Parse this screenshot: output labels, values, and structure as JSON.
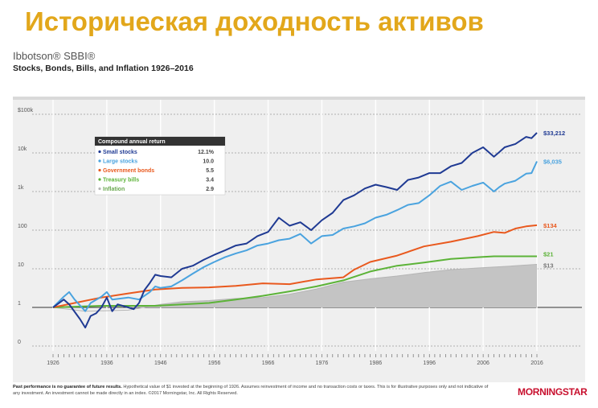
{
  "slide_title": "Историческая доходность активов",
  "brand": "Ibbotson® SBBI®",
  "footnote": {
    "bold": "Past performance is no guarantee of future results.",
    "text": " Hypothetical value of $1 invested at the beginning of 1926. Assumes reinvestment of income and no transaction costs or taxes. This is for illustrative purposes only and not indicative of any investment. An investment cannot be made directly in an index. ©2017 Morningstar, Inc. All Rights Reserved."
  },
  "logo": {
    "text": "MORNINGSTAR",
    "icon": "star-icon"
  },
  "chart_data": {
    "type": "line",
    "title": "Stocks, Bonds, Bills, and Inflation 1926–2016",
    "y_scale": "log",
    "y_ticks": [
      {
        "value": 0.1,
        "label": "0"
      },
      {
        "value": 1,
        "label": "1"
      },
      {
        "value": 10,
        "label": "10"
      },
      {
        "value": 100,
        "label": "100"
      },
      {
        "value": 1000,
        "label": "1k"
      },
      {
        "value": 10000,
        "label": "10k"
      },
      {
        "value": 100000,
        "label": "$100k"
      }
    ],
    "x_ticks": [
      1926,
      1936,
      1946,
      1956,
      1966,
      1976,
      1986,
      1996,
      2006,
      2016
    ],
    "xlim": [
      1926,
      2016
    ],
    "ylim": [
      0.1,
      100000
    ],
    "legend": {
      "title": "Compound annual return",
      "placement": "top-left"
    },
    "series": [
      {
        "name": "Small stocks",
        "return": "12.1%",
        "end_label": "$33,212",
        "color": "#1f3a93",
        "points": [
          [
            1926,
            1
          ],
          [
            1928,
            1.6
          ],
          [
            1929,
            1.2
          ],
          [
            1931,
            0.5
          ],
          [
            1932,
            0.3
          ],
          [
            1933,
            0.6
          ],
          [
            1934,
            0.7
          ],
          [
            1935,
            1.0
          ],
          [
            1936,
            1.8
          ],
          [
            1937,
            0.8
          ],
          [
            1938,
            1.2
          ],
          [
            1940,
            1.0
          ],
          [
            1941,
            0.9
          ],
          [
            1942,
            1.3
          ],
          [
            1943,
            2.8
          ],
          [
            1944,
            4.3
          ],
          [
            1945,
            7.0
          ],
          [
            1946,
            6.5
          ],
          [
            1948,
            6.0
          ],
          [
            1950,
            10
          ],
          [
            1952,
            12
          ],
          [
            1954,
            17
          ],
          [
            1956,
            23
          ],
          [
            1958,
            30
          ],
          [
            1960,
            40
          ],
          [
            1962,
            45
          ],
          [
            1964,
            70
          ],
          [
            1966,
            90
          ],
          [
            1968,
            210
          ],
          [
            1970,
            130
          ],
          [
            1972,
            160
          ],
          [
            1974,
            100
          ],
          [
            1976,
            180
          ],
          [
            1978,
            280
          ],
          [
            1980,
            600
          ],
          [
            1982,
            800
          ],
          [
            1984,
            1200
          ],
          [
            1986,
            1500
          ],
          [
            1988,
            1300
          ],
          [
            1990,
            1100
          ],
          [
            1992,
            2000
          ],
          [
            1994,
            2300
          ],
          [
            1996,
            3000
          ],
          [
            1998,
            3000
          ],
          [
            2000,
            4500
          ],
          [
            2002,
            5500
          ],
          [
            2004,
            10000
          ],
          [
            2006,
            14000
          ],
          [
            2008,
            8000
          ],
          [
            2009,
            10500
          ],
          [
            2010,
            14000
          ],
          [
            2012,
            17000
          ],
          [
            2014,
            26000
          ],
          [
            2015,
            24000
          ],
          [
            2016,
            33212
          ]
        ]
      },
      {
        "name": "Large stocks",
        "return": "10.0",
        "end_label": "$6,035",
        "color": "#4aa3df",
        "points": [
          [
            1926,
            1
          ],
          [
            1928,
            1.9
          ],
          [
            1929,
            2.5
          ],
          [
            1930,
            1.6
          ],
          [
            1932,
            0.8
          ],
          [
            1933,
            1.3
          ],
          [
            1935,
            1.9
          ],
          [
            1936,
            2.5
          ],
          [
            1937,
            1.6
          ],
          [
            1940,
            1.8
          ],
          [
            1942,
            1.6
          ],
          [
            1944,
            2.5
          ],
          [
            1945,
            3.5
          ],
          [
            1946,
            3.2
          ],
          [
            1948,
            3.5
          ],
          [
            1950,
            5
          ],
          [
            1952,
            7.5
          ],
          [
            1954,
            11
          ],
          [
            1956,
            15
          ],
          [
            1958,
            20
          ],
          [
            1960,
            25
          ],
          [
            1962,
            30
          ],
          [
            1964,
            40
          ],
          [
            1966,
            45
          ],
          [
            1968,
            55
          ],
          [
            1970,
            60
          ],
          [
            1972,
            80
          ],
          [
            1974,
            45
          ],
          [
            1976,
            70
          ],
          [
            1978,
            75
          ],
          [
            1980,
            110
          ],
          [
            1982,
            125
          ],
          [
            1984,
            150
          ],
          [
            1986,
            210
          ],
          [
            1988,
            250
          ],
          [
            1990,
            330
          ],
          [
            1992,
            450
          ],
          [
            1994,
            500
          ],
          [
            1996,
            800
          ],
          [
            1998,
            1400
          ],
          [
            2000,
            1800
          ],
          [
            2002,
            1100
          ],
          [
            2004,
            1400
          ],
          [
            2006,
            1700
          ],
          [
            2008,
            1000
          ],
          [
            2009,
            1300
          ],
          [
            2010,
            1600
          ],
          [
            2012,
            1900
          ],
          [
            2014,
            2900
          ],
          [
            2015,
            3000
          ],
          [
            2016,
            6035
          ]
        ]
      },
      {
        "name": "Government bonds",
        "return": "5.5",
        "end_label": "$134",
        "color": "#e9591e",
        "points": [
          [
            1926,
            1
          ],
          [
            1930,
            1.3
          ],
          [
            1935,
            1.8
          ],
          [
            1940,
            2.3
          ],
          [
            1945,
            2.9
          ],
          [
            1950,
            3.2
          ],
          [
            1955,
            3.3
          ],
          [
            1960,
            3.6
          ],
          [
            1965,
            4.2
          ],
          [
            1970,
            4.0
          ],
          [
            1975,
            5.3
          ],
          [
            1980,
            6.0
          ],
          [
            1982,
            9.5
          ],
          [
            1985,
            15
          ],
          [
            1990,
            22
          ],
          [
            1995,
            38
          ],
          [
            2000,
            50
          ],
          [
            2005,
            70
          ],
          [
            2008,
            90
          ],
          [
            2010,
            85
          ],
          [
            2012,
            110
          ],
          [
            2014,
            125
          ],
          [
            2016,
            134
          ]
        ]
      },
      {
        "name": "Treasury bills",
        "return": "3.4",
        "end_label": "$21",
        "color": "#5cb338",
        "points": [
          [
            1926,
            1
          ],
          [
            1935,
            1.1
          ],
          [
            1945,
            1.1
          ],
          [
            1950,
            1.2
          ],
          [
            1955,
            1.3
          ],
          [
            1960,
            1.6
          ],
          [
            1965,
            2.0
          ],
          [
            1970,
            2.6
          ],
          [
            1975,
            3.5
          ],
          [
            1980,
            5.0
          ],
          [
            1985,
            8.5
          ],
          [
            1990,
            12
          ],
          [
            1995,
            14.5
          ],
          [
            2000,
            18
          ],
          [
            2005,
            20
          ],
          [
            2008,
            21
          ],
          [
            2016,
            21
          ]
        ]
      },
      {
        "name": "Inflation",
        "return": "2.9",
        "end_label": "$13",
        "color": "#b5b5b5",
        "points": [
          [
            1926,
            1
          ],
          [
            1932,
            0.8
          ],
          [
            1940,
            0.85
          ],
          [
            1946,
            1.2
          ],
          [
            1950,
            1.4
          ],
          [
            1955,
            1.5
          ],
          [
            1960,
            1.7
          ],
          [
            1965,
            1.8
          ],
          [
            1970,
            2.2
          ],
          [
            1975,
            3.0
          ],
          [
            1980,
            4.5
          ],
          [
            1985,
            5.5
          ],
          [
            1990,
            6.5
          ],
          [
            1995,
            8
          ],
          [
            2000,
            9.5
          ],
          [
            2005,
            10.5
          ],
          [
            2010,
            11.5
          ],
          [
            2016,
            13
          ]
        ]
      }
    ]
  }
}
